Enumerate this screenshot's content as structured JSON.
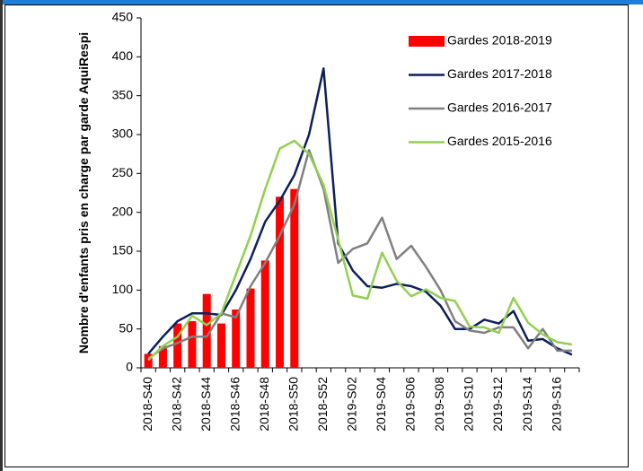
{
  "chart_data": {
    "type": "bar-line",
    "y_label": "Nombre d'enfants pris en charge par garde AquiRespi",
    "categories": [
      "2018-S40",
      null,
      "2018-S42",
      null,
      "2018-S44",
      null,
      "2018-S46",
      null,
      "2018-S48",
      null,
      "2018-S50",
      null,
      "2018-S52",
      null,
      "2019-S02",
      null,
      "2019-S04",
      null,
      "2019-S06",
      null,
      "2019-S08",
      null,
      "2019-S10",
      null,
      "2019-S12",
      null,
      "2019-S14",
      null,
      "2019-S16",
      null
    ],
    "series": [
      {
        "name": "Gardes 2018-2019",
        "type": "bar",
        "color": "#ff0000",
        "values": [
          18,
          28,
          57,
          60,
          95,
          57,
          75,
          102,
          138,
          220,
          230,
          null,
          null,
          null,
          null,
          null,
          null,
          null,
          null,
          null,
          null,
          null,
          null,
          null,
          null,
          null,
          null,
          null,
          null,
          null
        ]
      },
      {
        "name": "Gardes 2017-2018",
        "type": "line",
        "color": "#0d1f5c",
        "values": [
          18,
          40,
          60,
          70,
          70,
          68,
          100,
          140,
          188,
          215,
          248,
          300,
          385,
          160,
          125,
          105,
          103,
          108,
          105,
          98,
          80,
          50,
          50,
          62,
          57,
          73,
          35,
          37,
          25,
          17
        ]
      },
      {
        "name": "Gardes 2016-2017",
        "type": "line",
        "color": "#808080",
        "values": [
          12,
          25,
          32,
          40,
          40,
          70,
          65,
          105,
          135,
          170,
          210,
          280,
          230,
          135,
          153,
          160,
          193,
          140,
          157,
          130,
          100,
          60,
          48,
          45,
          52,
          52,
          25,
          50,
          22,
          22
        ]
      },
      {
        "name": "Gardes 2015-2016",
        "type": "line",
        "color": "#92d050",
        "values": [
          10,
          28,
          40,
          67,
          55,
          70,
          120,
          170,
          230,
          282,
          292,
          275,
          235,
          165,
          93,
          89,
          148,
          112,
          92,
          101,
          90,
          86,
          53,
          52,
          45,
          90,
          58,
          43,
          33,
          30
        ]
      }
    ],
    "ylim": [
      0,
      450
    ],
    "yticks": [
      0,
      50,
      100,
      150,
      200,
      250,
      300,
      350,
      400,
      450
    ]
  }
}
